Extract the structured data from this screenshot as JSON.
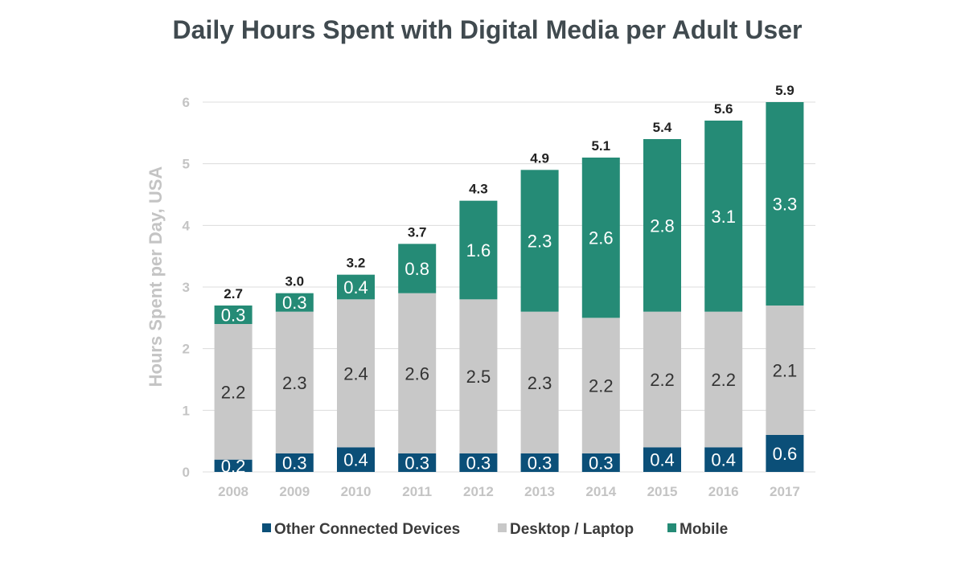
{
  "chart_data": {
    "type": "bar",
    "stacked": true,
    "title": "Daily Hours Spent with Digital Media per Adult User",
    "xlabel": "",
    "ylabel": "Hours Spent per Day, USA",
    "ylim": [
      0,
      6
    ],
    "yticks": [
      "0",
      "1",
      "2",
      "3",
      "4",
      "5",
      "6"
    ],
    "grid": true,
    "legend_position": "bottom",
    "categories": [
      "2008",
      "2009",
      "2010",
      "2011",
      "2012",
      "2013",
      "2014",
      "2015",
      "2016",
      "2017"
    ],
    "series": [
      {
        "name": "Other Connected Devices",
        "color": "#0b4f78",
        "label_color": "#ffffff",
        "values": [
          0.2,
          0.3,
          0.4,
          0.3,
          0.3,
          0.3,
          0.3,
          0.4,
          0.4,
          0.6
        ],
        "labels": [
          "0.2",
          "0.3",
          "0.4",
          "0.3",
          "0.3",
          "0.3",
          "0.3",
          "0.4",
          "0.4",
          "0.6"
        ]
      },
      {
        "name": "Desktop / Laptop",
        "color": "#c8c8c8",
        "label_color": "#333333",
        "values": [
          2.2,
          2.3,
          2.4,
          2.6,
          2.5,
          2.3,
          2.2,
          2.2,
          2.2,
          2.1
        ],
        "labels": [
          "2.2",
          "2.3",
          "2.4",
          "2.6",
          "2.5",
          "2.3",
          "2.2",
          "2.2",
          "2.2",
          "2.1"
        ]
      },
      {
        "name": "Mobile",
        "color": "#258b76",
        "label_color": "#ffffff",
        "values": [
          0.3,
          0.3,
          0.4,
          0.8,
          1.6,
          2.3,
          2.6,
          2.8,
          3.1,
          3.3
        ],
        "labels": [
          "0.3",
          "0.3",
          "0.4",
          "0.8",
          "1.6",
          "2.3",
          "2.6",
          "2.8",
          "3.1",
          "3.3"
        ]
      }
    ],
    "totals": [
      "2.7",
      "3.0",
      "3.2",
      "3.7",
      "4.3",
      "4.9",
      "5.1",
      "5.4",
      "5.6",
      "5.9"
    ]
  }
}
